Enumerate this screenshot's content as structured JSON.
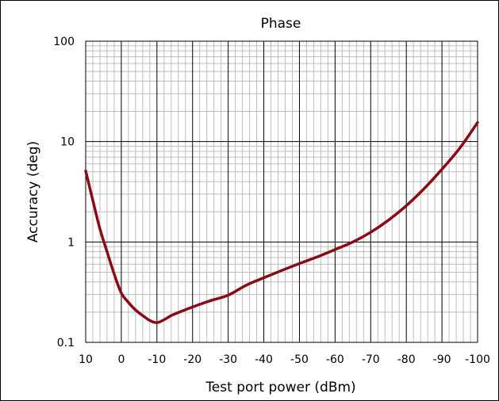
{
  "chart_data": {
    "type": "line",
    "title": "Phase",
    "xlabel": "Test port power (dBm)",
    "ylabel": "Accuracy (deg)",
    "x_ticks": [
      "10",
      "0",
      "-10",
      "-20",
      "-30",
      "-40",
      "-50",
      "-60",
      "-70",
      "-80",
      "-90",
      "-100"
    ],
    "y_ticks": [
      "0.1",
      "1",
      "10",
      "100"
    ],
    "xlim": [
      10,
      -100
    ],
    "ylim": [
      0.1,
      100
    ],
    "y_scale": "log",
    "grid": true,
    "colors": {
      "line": "#8B0A17",
      "major_grid": "#000000",
      "minor_grid": "#bdbdbd"
    },
    "series": [
      {
        "x": [
          10,
          8,
          6,
          4,
          2,
          0,
          -2,
          -4,
          -6,
          -8,
          -10,
          -12,
          -14,
          -16,
          -20,
          -25,
          -30,
          -35,
          -40,
          -45,
          -50,
          -55,
          -60,
          -65,
          -70,
          -75,
          -80,
          -85,
          -90,
          -95,
          -100
        ],
        "y": [
          5.1,
          2.6,
          1.35,
          0.8,
          0.48,
          0.31,
          0.25,
          0.21,
          0.185,
          0.165,
          0.157,
          0.168,
          0.185,
          0.198,
          0.225,
          0.26,
          0.295,
          0.37,
          0.44,
          0.52,
          0.61,
          0.71,
          0.84,
          1.0,
          1.25,
          1.65,
          2.3,
          3.4,
          5.3,
          8.6,
          15.5
        ]
      }
    ]
  }
}
